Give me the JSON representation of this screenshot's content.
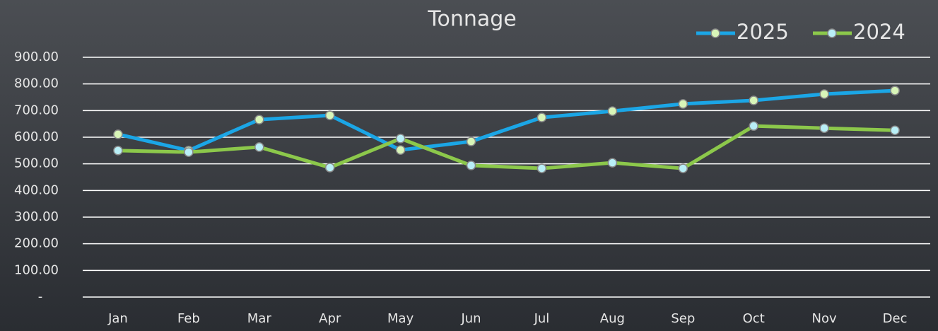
{
  "chart_data": {
    "type": "line",
    "title": "Tonnage",
    "categories": [
      "Jan",
      "Feb",
      "Mar",
      "Apr",
      "May",
      "Jun",
      "Jul",
      "Aug",
      "Sep",
      "Oct",
      "Nov",
      "Dec"
    ],
    "series": [
      {
        "name": "2025",
        "color": "#1ba6e6",
        "marker_color": "#d8f5b8",
        "values": [
          611,
          550,
          666,
          682,
          552,
          584,
          674,
          698,
          725,
          738,
          762,
          775
        ]
      },
      {
        "name": "2024",
        "color": "#8cc84b",
        "marker_color": "#b9eff7",
        "values": [
          550,
          544,
          563,
          486,
          595,
          494,
          483,
          504,
          483,
          642,
          634,
          626
        ]
      }
    ],
    "ylim": [
      0,
      900
    ],
    "yticks": [
      {
        "value": 0,
        "label": "-"
      },
      {
        "value": 100,
        "label": "100.00"
      },
      {
        "value": 200,
        "label": "200.00"
      },
      {
        "value": 300,
        "label": "300.00"
      },
      {
        "value": 400,
        "label": "400.00"
      },
      {
        "value": 500,
        "label": "500.00"
      },
      {
        "value": 600,
        "label": "600.00"
      },
      {
        "value": 700,
        "label": "700.00"
      },
      {
        "value": 800,
        "label": "800.00"
      },
      {
        "value": 900,
        "label": "900.00"
      }
    ],
    "grid": true,
    "legend": "top-right"
  }
}
